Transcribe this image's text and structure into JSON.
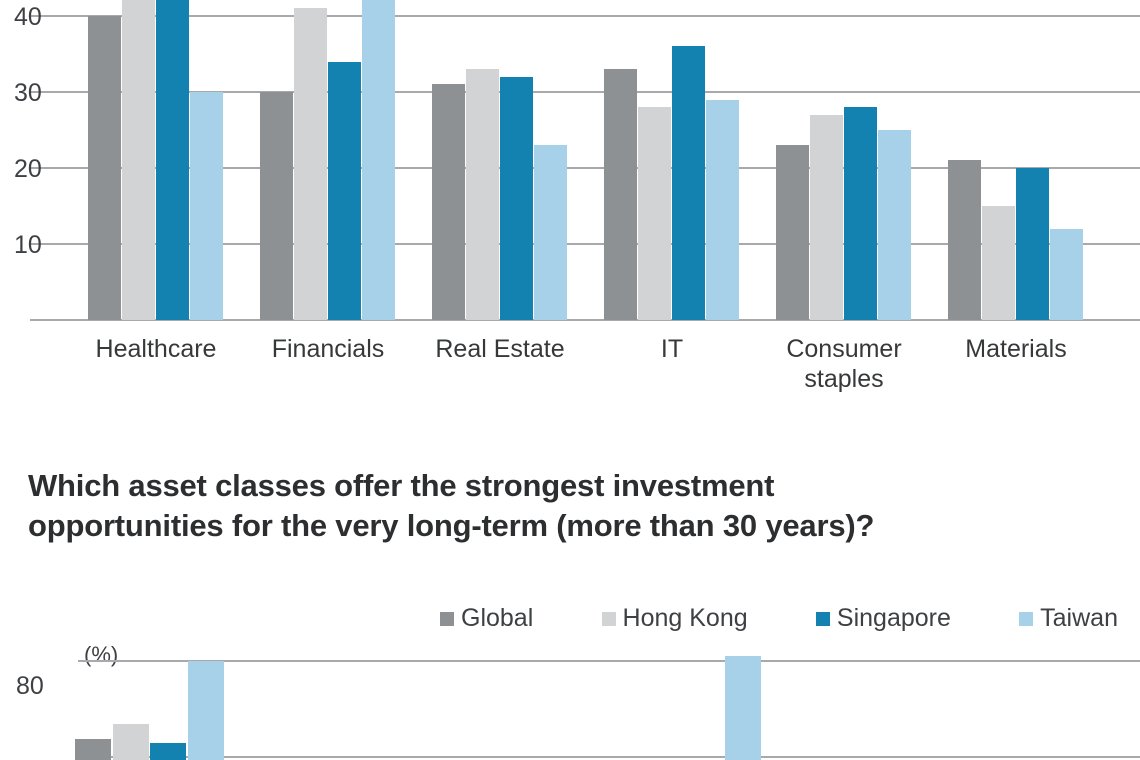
{
  "question": {
    "line1": "Which asset classes offer the strongest investment",
    "line2": "opportunities for the very long-term (more than 30 years)?"
  },
  "legend": {
    "items": [
      {
        "label": "Global",
        "color": "#8e9193"
      },
      {
        "label": "Hong Kong",
        "color": "#d2d3d5"
      },
      {
        "label": "Singapore",
        "color": "#1482b0"
      },
      {
        "label": "Taiwan",
        "color": "#a6d1e8"
      }
    ]
  },
  "colors": {
    "grid": "#a7a9ac",
    "axis": "#a7a9ac",
    "text": "#3e4043"
  },
  "chart_data": [
    {
      "type": "bar",
      "id": "sector-chart",
      "title": "",
      "categories": [
        "Healthcare",
        "Financials",
        "Real Estate",
        "IT",
        "Consumer staples",
        "Materials"
      ],
      "series": [
        {
          "name": "Global",
          "color": "#8e9193",
          "values": [
            40,
            30,
            31,
            33,
            23,
            21
          ]
        },
        {
          "name": "Hong Kong",
          "color": "#d2d3d5",
          "values": [
            45,
            41,
            33,
            28,
            27,
            15
          ]
        },
        {
          "name": "Singapore",
          "color": "#1482b0",
          "values": [
            46,
            34,
            32,
            36,
            28,
            20
          ]
        },
        {
          "name": "Taiwan",
          "color": "#a6d1e8",
          "values": [
            30,
            44,
            23,
            29,
            25,
            12
          ]
        }
      ],
      "yticks": [
        10,
        20,
        30,
        40
      ],
      "ylim": [
        0,
        45
      ],
      "grid": true,
      "note": "top of chart cropped by screenshot edge"
    },
    {
      "type": "bar",
      "id": "asset-class-chart",
      "title": "",
      "unit_label": "(%)",
      "categories": [
        "",
        "",
        "",
        ""
      ],
      "series": [
        {
          "name": "Global",
          "color": "#8e9193",
          "values": [
            64,
            null,
            null,
            null
          ]
        },
        {
          "name": "Hong Kong",
          "color": "#d2d3d5",
          "values": [
            67,
            null,
            null,
            null
          ]
        },
        {
          "name": "Singapore",
          "color": "#1482b0",
          "values": [
            63,
            null,
            null,
            null
          ]
        },
        {
          "name": "Taiwan",
          "color": "#a6d1e8",
          "values": [
            80,
            null,
            null,
            81
          ]
        }
      ],
      "yticks": [
        80
      ],
      "grid": true,
      "note": "chart cropped at bottom of screenshot; only upper portions of bars visible"
    }
  ]
}
